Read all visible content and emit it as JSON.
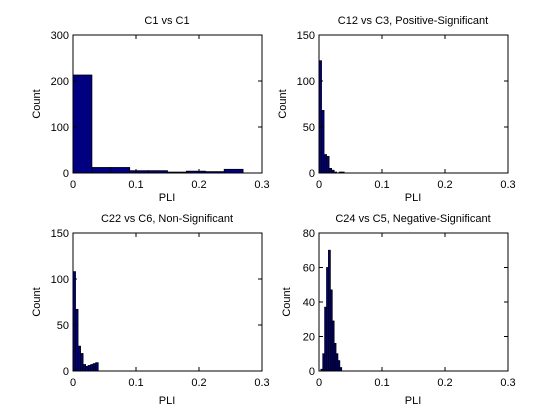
{
  "chart_data": [
    {
      "type": "bar",
      "title": "C1 vs C1",
      "xlabel": "PLI",
      "ylabel": "Count",
      "xlim": [
        0,
        0.3
      ],
      "ylim": [
        0,
        300
      ],
      "xticks": [
        "0",
        "0.1",
        "0.2",
        "0.3"
      ],
      "yticks": [
        "0",
        "100",
        "200",
        "300"
      ],
      "bin_edges": [
        0,
        0.03,
        0.06,
        0.09,
        0.12,
        0.15,
        0.18,
        0.21,
        0.24,
        0.27
      ],
      "values": [
        213,
        12,
        12,
        5,
        5,
        2,
        4,
        3,
        8
      ]
    },
    {
      "type": "bar",
      "title": "C12 vs C3, Positive-Significant",
      "xlabel": "PLI",
      "ylabel": "Count",
      "xlim": [
        0,
        0.3
      ],
      "ylim": [
        0,
        150
      ],
      "xticks": [
        "0",
        "0.1",
        "0.2",
        "0.3"
      ],
      "yticks": [
        "0",
        "50",
        "100",
        "150"
      ],
      "bin_edges": [
        0,
        0.004,
        0.008,
        0.012,
        0.016,
        0.02,
        0.024,
        0.028,
        0.032,
        0.036,
        0.04
      ],
      "values": [
        122,
        68,
        20,
        18,
        5,
        3,
        1,
        0,
        1,
        1
      ]
    },
    {
      "type": "bar",
      "title": "C22 vs C6, Non-Significant",
      "xlabel": "PLI",
      "ylabel": "Count",
      "xlim": [
        0,
        0.3
      ],
      "ylim": [
        0,
        150
      ],
      "xticks": [
        "0",
        "0.1",
        "0.2",
        "0.3"
      ],
      "yticks": [
        "0",
        "50",
        "100",
        "150"
      ],
      "bin_edges": [
        0,
        0.004,
        0.008,
        0.012,
        0.016,
        0.02,
        0.024,
        0.028,
        0.032,
        0.036,
        0.04
      ],
      "values": [
        108,
        67,
        27,
        19,
        7,
        5,
        6,
        7,
        8,
        9
      ]
    },
    {
      "type": "bar",
      "title": "C24 vs C5, Negative-Significant",
      "xlabel": "PLI",
      "ylabel": "Count",
      "xlim": [
        0,
        0.3
      ],
      "ylim": [
        0,
        80
      ],
      "xticks": [
        "0",
        "0.1",
        "0.2",
        "0.3"
      ],
      "yticks": [
        "0",
        "20",
        "40",
        "60",
        "80"
      ],
      "bin_edges": [
        0,
        0.003,
        0.006,
        0.009,
        0.012,
        0.015,
        0.018,
        0.021,
        0.024,
        0.027,
        0.03,
        0.033,
        0.036
      ],
      "values": [
        0,
        1,
        10,
        37,
        60,
        70,
        47,
        29,
        16,
        10,
        6,
        2
      ]
    }
  ],
  "colors": {
    "bar_fill": "#000080",
    "bar_edge": "#000000",
    "axes": "#000000",
    "background": "#ffffff"
  }
}
